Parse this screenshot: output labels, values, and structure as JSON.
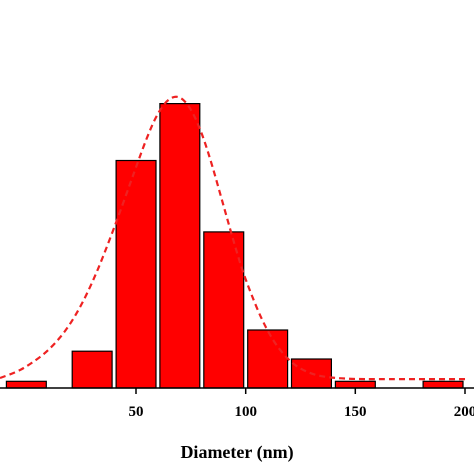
{
  "chart_data": {
    "type": "bar",
    "title": "",
    "xlabel": "Diameter (nm)",
    "ylabel": "",
    "xlim": [
      -12,
      200
    ],
    "ylim": [
      0,
      33
    ],
    "x_ticks": [
      50,
      100,
      150,
      200
    ],
    "x_tick_labels": [
      "50",
      "100",
      "150",
      "200"
    ],
    "bin_width": 20,
    "bins": [
      {
        "center": 0,
        "value": 0.6
      },
      {
        "center": 30,
        "value": 3.3
      },
      {
        "center": 50,
        "value": 20.4
      },
      {
        "center": 70,
        "value": 25.5
      },
      {
        "center": 90,
        "value": 14.0
      },
      {
        "center": 110,
        "value": 5.2
      },
      {
        "center": 130,
        "value": 2.6
      },
      {
        "center": 150,
        "value": 0.6
      },
      {
        "center": 190,
        "value": 0.6
      }
    ],
    "fit_curve": {
      "type": "gaussian",
      "style": "dashed",
      "points": [
        [
          -12,
          0.9
        ],
        [
          -5,
          1.4
        ],
        [
          0,
          1.9
        ],
        [
          10,
          3.3
        ],
        [
          20,
          5.6
        ],
        [
          30,
          9.3
        ],
        [
          40,
          14.3
        ],
        [
          50,
          19.8
        ],
        [
          55,
          22.5
        ],
        [
          60,
          24.7
        ],
        [
          65,
          26.0
        ],
        [
          70,
          26.2
        ],
        [
          75,
          25.1
        ],
        [
          80,
          22.9
        ],
        [
          85,
          19.8
        ],
        [
          90,
          16.3
        ],
        [
          95,
          12.8
        ],
        [
          100,
          9.6
        ],
        [
          110,
          4.9
        ],
        [
          120,
          2.3
        ],
        [
          130,
          1.2
        ],
        [
          140,
          0.9
        ],
        [
          150,
          0.8
        ],
        [
          160,
          0.8
        ],
        [
          180,
          0.8
        ],
        [
          200,
          0.8
        ]
      ]
    },
    "colors": {
      "bar": "#ff0000",
      "fit": "#ee2222",
      "axis": "#000000"
    }
  }
}
